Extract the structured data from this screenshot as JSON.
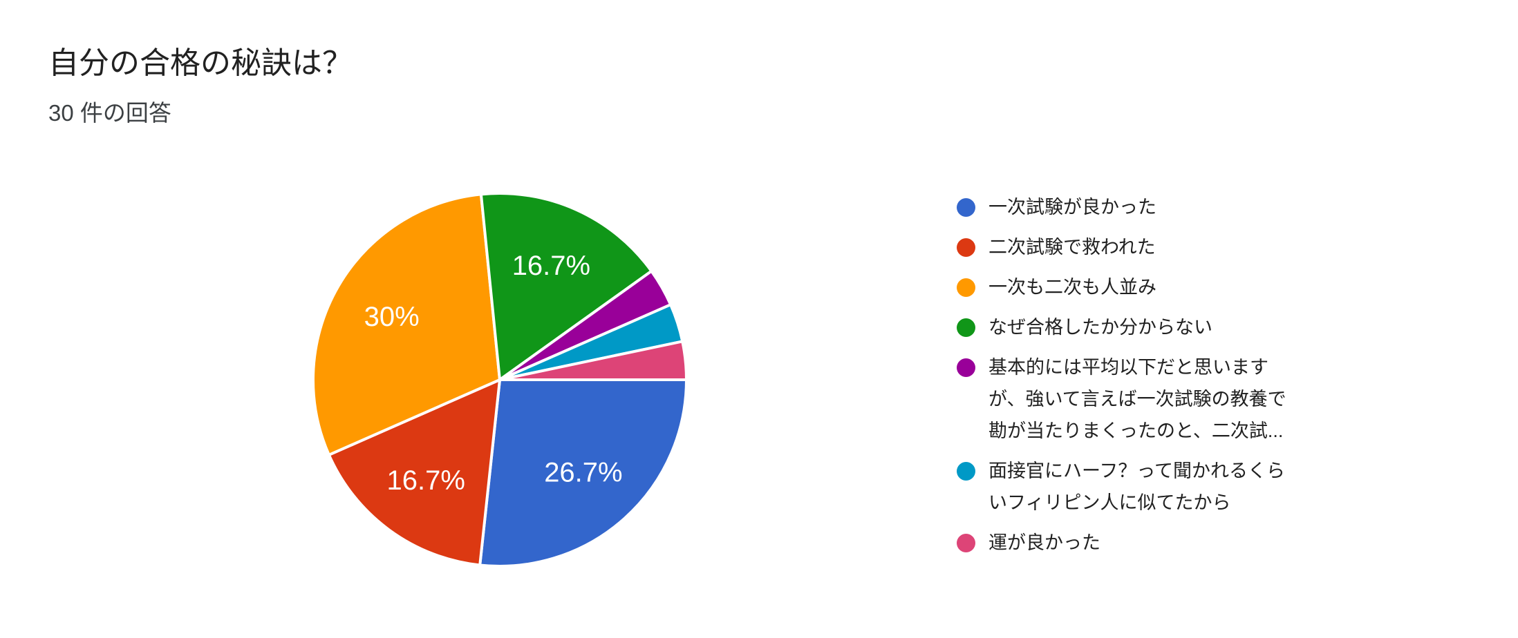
{
  "header": {
    "title": "自分の合格の秘訣は？",
    "response_count": "30 件の回答"
  },
  "colors": {
    "background": "#ffffff",
    "title_text": "#212121",
    "subtitle_text": "#3c4043",
    "legend_text": "#212121",
    "slice_label_text": "#ffffff",
    "slice_border": "#ffffff"
  },
  "chart_data": {
    "type": "pie",
    "title": "自分の合格の秘訣は？",
    "subtitle": "30 件の回答",
    "total_responses": 30,
    "legend_position": "right",
    "start_angle_deg_clockwise_from_top": 90,
    "direction": "clockwise",
    "series": [
      {
        "label": "一次試験が良かった",
        "count": 8,
        "percent": 26.7,
        "slice_label": "26.7%",
        "color": "#3366CC",
        "legend_lines": [
          "一次試験が良かった"
        ]
      },
      {
        "label": "二次試験で救われた",
        "count": 5,
        "percent": 16.7,
        "slice_label": "16.7%",
        "color": "#DC3912",
        "legend_lines": [
          "二次試験で救われた"
        ]
      },
      {
        "label": "一次も二次も人並み",
        "count": 9,
        "percent": 30,
        "slice_label": "30%",
        "color": "#FF9900",
        "legend_lines": [
          "一次も二次も人並み"
        ]
      },
      {
        "label": "なぜ合格したか分からない",
        "count": 5,
        "percent": 16.7,
        "slice_label": "16.7%",
        "color": "#109618",
        "legend_lines": [
          "なぜ合格したか分からない"
        ]
      },
      {
        "label": "基本的には平均以下だと思いますが、強いて言えば一次試験の教養で勘が当たりまくったのと、二次試...",
        "count": 1,
        "percent": 3.3,
        "slice_label": null,
        "color": "#990099",
        "legend_lines": [
          "基本的には平均以下だと思います",
          "が、強いて言えば一次試験の教養で",
          "勘が当たりまくったのと、二次試..."
        ]
      },
      {
        "label": "面接官にハーフ？って聞かれるくらいフィリピン人に似てたから",
        "count": 1,
        "percent": 3.3,
        "slice_label": null,
        "color": "#0099C6",
        "legend_lines": [
          "面接官にハーフ？って聞かれるくら",
          "いフィリピン人に似てたから"
        ]
      },
      {
        "label": "運が良かった",
        "count": 1,
        "percent": 3.3,
        "slice_label": null,
        "color": "#DD4477",
        "legend_lines": [
          "運が良かった"
        ]
      }
    ]
  }
}
